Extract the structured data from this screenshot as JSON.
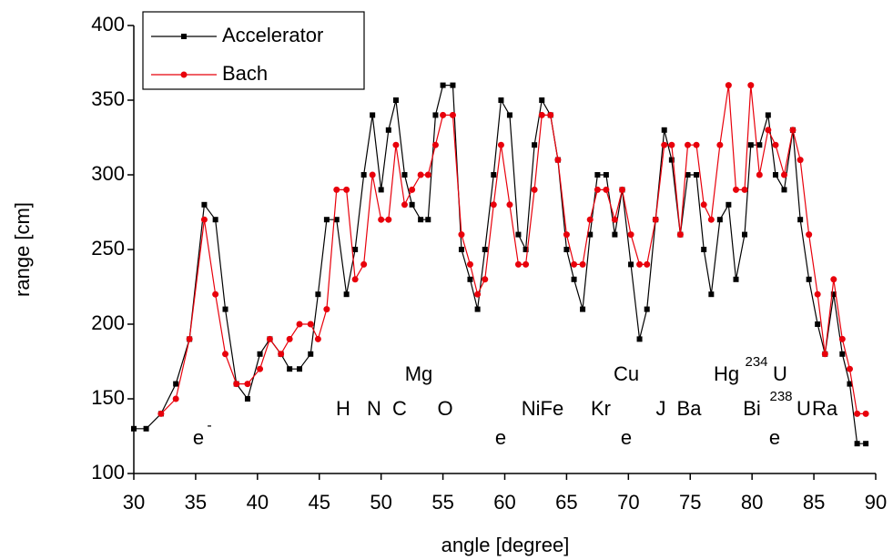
{
  "chart_data": {
    "type": "line",
    "x_label": "angle [degree]",
    "y_label": "range [cm]",
    "xlim": [
      30,
      90
    ],
    "xticks": [
      30,
      35,
      40,
      45,
      50,
      55,
      60,
      65,
      70,
      75,
      80,
      85,
      90
    ],
    "ylim": [
      100,
      400
    ],
    "yticks": [
      100,
      150,
      200,
      250,
      300,
      350,
      400
    ],
    "legend": "upper left",
    "series": [
      {
        "name": "Accelerator",
        "color": "#000000",
        "marker": "square",
        "x": [
          30,
          31,
          32.2,
          33.4,
          34.5,
          35.7,
          36.6,
          37.4,
          38.3,
          39.2,
          40.2,
          41.0,
          41.9,
          42.6,
          43.4,
          44.3,
          44.9,
          45.6,
          46.4,
          47.2,
          47.9,
          48.6,
          49.3,
          50.0,
          50.6,
          51.2,
          51.9,
          52.5,
          53.2,
          53.8,
          54.4,
          55.0,
          55.8,
          56.5,
          57.2,
          57.8,
          58.4,
          59.1,
          59.7,
          60.4,
          61.1,
          61.7,
          62.4,
          63.0,
          63.7,
          64.3,
          65.0,
          65.6,
          66.3,
          66.9,
          67.5,
          68.2,
          68.9,
          69.5,
          70.2,
          70.9,
          71.5,
          72.2,
          72.9,
          73.5,
          74.2,
          74.8,
          75.5,
          76.1,
          76.7,
          77.4,
          78.1,
          78.7,
          79.4,
          79.9,
          80.6,
          81.3,
          81.9,
          82.6,
          83.3,
          83.9,
          84.6,
          85.3,
          85.9,
          86.6,
          87.3,
          87.9,
          88.5,
          89.2
        ],
        "values": [
          130,
          130,
          140,
          160,
          190,
          280,
          270,
          210,
          160,
          150,
          180,
          190,
          180,
          170,
          170,
          180,
          220,
          270,
          270,
          220,
          250,
          300,
          340,
          290,
          330,
          350,
          300,
          280,
          270,
          270,
          340,
          360,
          360,
          250,
          230,
          210,
          250,
          300,
          350,
          340,
          260,
          250,
          320,
          350,
          340,
          310,
          250,
          230,
          210,
          260,
          300,
          300,
          260,
          290,
          240,
          190,
          210,
          270,
          330,
          310,
          260,
          300,
          300,
          250,
          220,
          270,
          280,
          230,
          260,
          320,
          320,
          340,
          300,
          290,
          330,
          270,
          230,
          200,
          180,
          220,
          180,
          160,
          120,
          120
        ]
      },
      {
        "name": "Bach",
        "color": "#e8000b",
        "marker": "circle",
        "x": [
          32.2,
          33.4,
          34.5,
          35.7,
          36.6,
          37.4,
          38.3,
          39.2,
          40.2,
          41.0,
          41.9,
          42.6,
          43.4,
          44.3,
          44.9,
          45.6,
          46.4,
          47.2,
          47.9,
          48.6,
          49.3,
          50.0,
          50.6,
          51.2,
          51.9,
          52.5,
          53.2,
          53.8,
          54.4,
          55.0,
          55.8,
          56.5,
          57.2,
          57.8,
          58.4,
          59.1,
          59.7,
          60.4,
          61.1,
          61.7,
          62.4,
          63.0,
          63.7,
          64.3,
          65.0,
          65.6,
          66.3,
          66.9,
          67.5,
          68.2,
          68.9,
          69.5,
          70.2,
          70.9,
          71.5,
          72.2,
          72.9,
          73.5,
          74.2,
          74.8,
          75.5,
          76.1,
          76.7,
          77.4,
          78.1,
          78.7,
          79.4,
          79.9,
          80.6,
          81.3,
          81.9,
          82.6,
          83.3,
          83.9,
          84.6,
          85.3,
          85.9,
          86.6,
          87.3,
          87.9,
          88.5,
          89.2
        ],
        "values": [
          140,
          150,
          190,
          270,
          220,
          180,
          160,
          160,
          170,
          190,
          180,
          190,
          200,
          200,
          190,
          210,
          290,
          290,
          230,
          240,
          300,
          270,
          270,
          320,
          280,
          290,
          300,
          300,
          320,
          340,
          340,
          260,
          240,
          220,
          230,
          280,
          320,
          280,
          240,
          240,
          290,
          340,
          340,
          310,
          260,
          240,
          240,
          270,
          290,
          290,
          270,
          290,
          260,
          240,
          240,
          270,
          320,
          320,
          260,
          320,
          320,
          280,
          270,
          320,
          360,
          290,
          290,
          360,
          300,
          330,
          320,
          300,
          330,
          310,
          260,
          220,
          180,
          230,
          190,
          170,
          140,
          140
        ]
      }
    ],
    "annotations": [
      "e",
      "-",
      "H",
      "N",
      "C",
      "Mg",
      "O",
      "e",
      "NiFe",
      "Kr",
      "Cu",
      "e",
      "J",
      "Ba",
      "Hg",
      "234",
      "U",
      "Bi",
      "238",
      "U",
      "Ra",
      "e"
    ]
  }
}
